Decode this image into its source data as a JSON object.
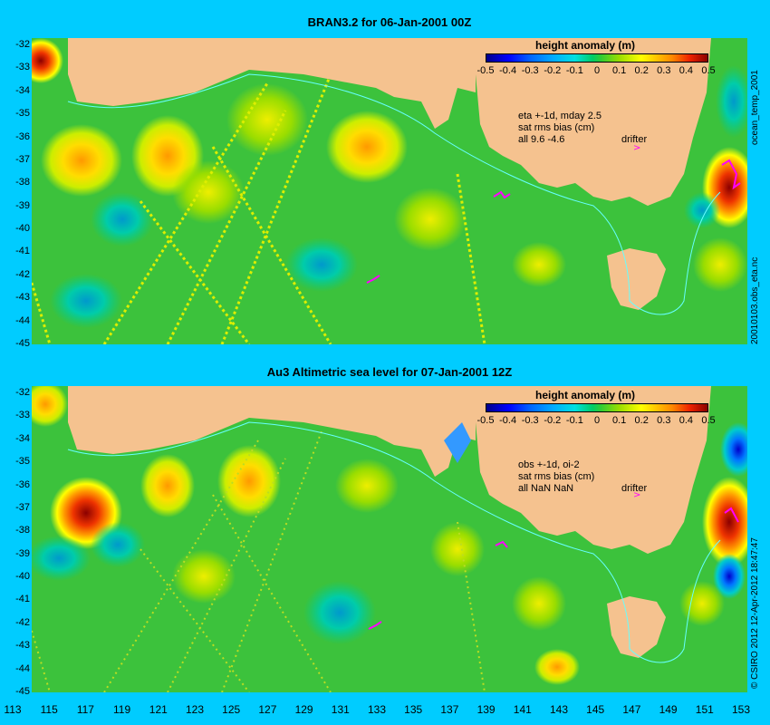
{
  "panels": [
    {
      "title": "BRAN3.2 for 06-Jan-2001 00Z",
      "legend_title": "height anomaly (m)",
      "notes": [
        "eta +-1d, mday 2.5",
        "sat rms bias (cm)",
        "all 9.6 -4.6"
      ],
      "drifter_label": "drifter",
      "side_text": "20010103.obs_eta.nc",
      "top_side_text": "ocean_temp_2001"
    },
    {
      "title": "Au3 Altimetric sea level  for 07-Jan-2001 12Z",
      "legend_title": "height anomaly (m)",
      "notes": [
        "obs +-1d, oi-2",
        "sat rms bias (cm)",
        "all NaN NaN"
      ],
      "drifter_label": "drifter",
      "side_text": "© CSIRO 2012  12-Apr-2012 18:47:47"
    }
  ],
  "legend_ticks": [
    "-0.5",
    "-0.4",
    "-0.3",
    "-0.2",
    "-0.1",
    "0",
    "0.1",
    "0.2",
    "0.3",
    "0.4",
    "0.5"
  ],
  "y_ticks": [
    "-32",
    "-33",
    "-34",
    "-35",
    "-36",
    "-37",
    "-38",
    "-39",
    "-40",
    "-41",
    "-42",
    "-43",
    "-44",
    "-45"
  ],
  "x_ticks": [
    "113",
    "115",
    "117",
    "119",
    "121",
    "123",
    "125",
    "127",
    "129",
    "131",
    "133",
    "135",
    "137",
    "139",
    "141",
    "143",
    "145",
    "147",
    "149",
    "151",
    "153"
  ],
  "colors": {
    "background": "#00ccff",
    "land": "#f5c28f",
    "ocean_base": "#3cc23c",
    "drifter": "#ff00ff"
  },
  "chart_data": {
    "type": "heatmap",
    "title": "height anomaly (m)",
    "xlabel": "",
    "ylabel": "",
    "xlim": [
      113,
      153
    ],
    "ylim": [
      -45,
      -31.5
    ],
    "colorbar_range": [
      -0.5,
      0.5
    ],
    "x_ticks": [
      113,
      115,
      117,
      119,
      121,
      123,
      125,
      127,
      129,
      131,
      133,
      135,
      137,
      139,
      141,
      143,
      145,
      147,
      149,
      151,
      153
    ],
    "y_ticks": [
      -32,
      -33,
      -34,
      -35,
      -36,
      -37,
      -38,
      -39,
      -40,
      -41,
      -42,
      -43,
      -44,
      -45
    ]
  }
}
